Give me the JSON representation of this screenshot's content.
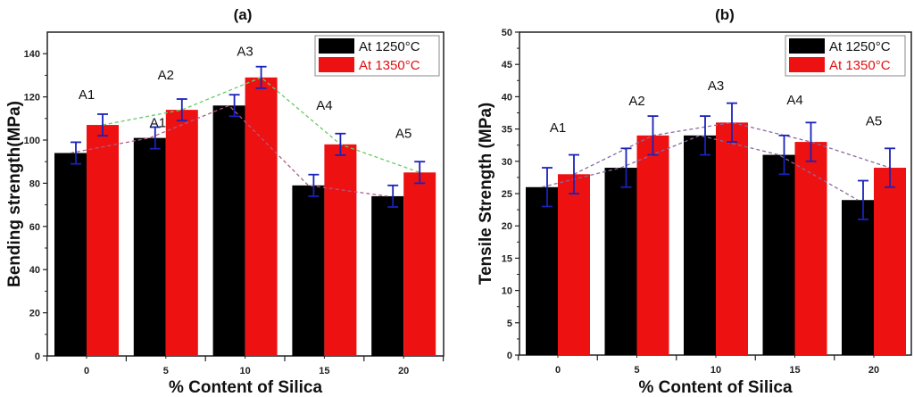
{
  "chart_data": [
    {
      "type": "bar",
      "title": "(a)",
      "xlabel": "% Content of Silica",
      "ylabel": "Bending strength(MPa)",
      "categories": [
        "0",
        "5",
        "10",
        "15",
        "20"
      ],
      "ylim": [
        0,
        150
      ],
      "yticks": [
        "0",
        "20",
        "40",
        "60",
        "80",
        "100",
        "120",
        "140"
      ],
      "ytick_values": [
        0,
        20,
        40,
        60,
        80,
        100,
        120,
        140
      ],
      "legend_position": "top-right",
      "series": [
        {
          "name": "At 1250°C",
          "color": "#000000",
          "values": [
            94,
            101,
            116,
            79,
            74
          ],
          "errors": [
            5,
            5,
            5,
            5,
            5
          ],
          "trend_color": "#b05a8a"
        },
        {
          "name": "At 1350°C",
          "color": "#ee1111",
          "values": [
            107,
            114,
            129,
            98,
            85
          ],
          "errors": [
            5,
            5,
            5,
            5,
            5
          ],
          "trend_color": "#66cc66"
        }
      ],
      "annotations": [
        {
          "text": "A1",
          "x": 0,
          "y": 119
        },
        {
          "text": "A2",
          "x": 1,
          "y": 128
        },
        {
          "text": "A1",
          "x": 0.9,
          "y": 106
        },
        {
          "text": "A3",
          "x": 2,
          "y": 139
        },
        {
          "text": "A4",
          "x": 3,
          "y": 114
        },
        {
          "text": "A5",
          "x": 4,
          "y": 101
        }
      ]
    },
    {
      "type": "bar",
      "title": "(b)",
      "xlabel": "% Content of Silica",
      "ylabel": "Tensile Strength (MPa)",
      "categories": [
        "0",
        "5",
        "10",
        "15",
        "20"
      ],
      "ylim": [
        0,
        50
      ],
      "yticks": [
        "0",
        "5",
        "10",
        "15",
        "20",
        "25",
        "30",
        "35",
        "40",
        "45",
        "50"
      ],
      "ytick_values": [
        0,
        5,
        10,
        15,
        20,
        25,
        30,
        35,
        40,
        45,
        50
      ],
      "legend_position": "top-right",
      "series": [
        {
          "name": "At 1250°C",
          "color": "#000000",
          "values": [
            26,
            29,
            34,
            31,
            24
          ],
          "errors": [
            3,
            3,
            3,
            3,
            3
          ],
          "trend_color": "#8a6aa0"
        },
        {
          "name": "At 1350°C",
          "color": "#ee1111",
          "values": [
            28,
            34,
            36,
            33,
            29
          ],
          "errors": [
            3,
            3,
            3,
            3,
            3
          ],
          "trend_color": "#8a6aa0"
        }
      ],
      "annotations": [
        {
          "text": "A1",
          "x": 0,
          "y": 34.5
        },
        {
          "text": "A2",
          "x": 1,
          "y": 38.7
        },
        {
          "text": "A3",
          "x": 2,
          "y": 41
        },
        {
          "text": "A4",
          "x": 3,
          "y": 38.8
        },
        {
          "text": "A5",
          "x": 4,
          "y": 35.6
        }
      ]
    }
  ]
}
